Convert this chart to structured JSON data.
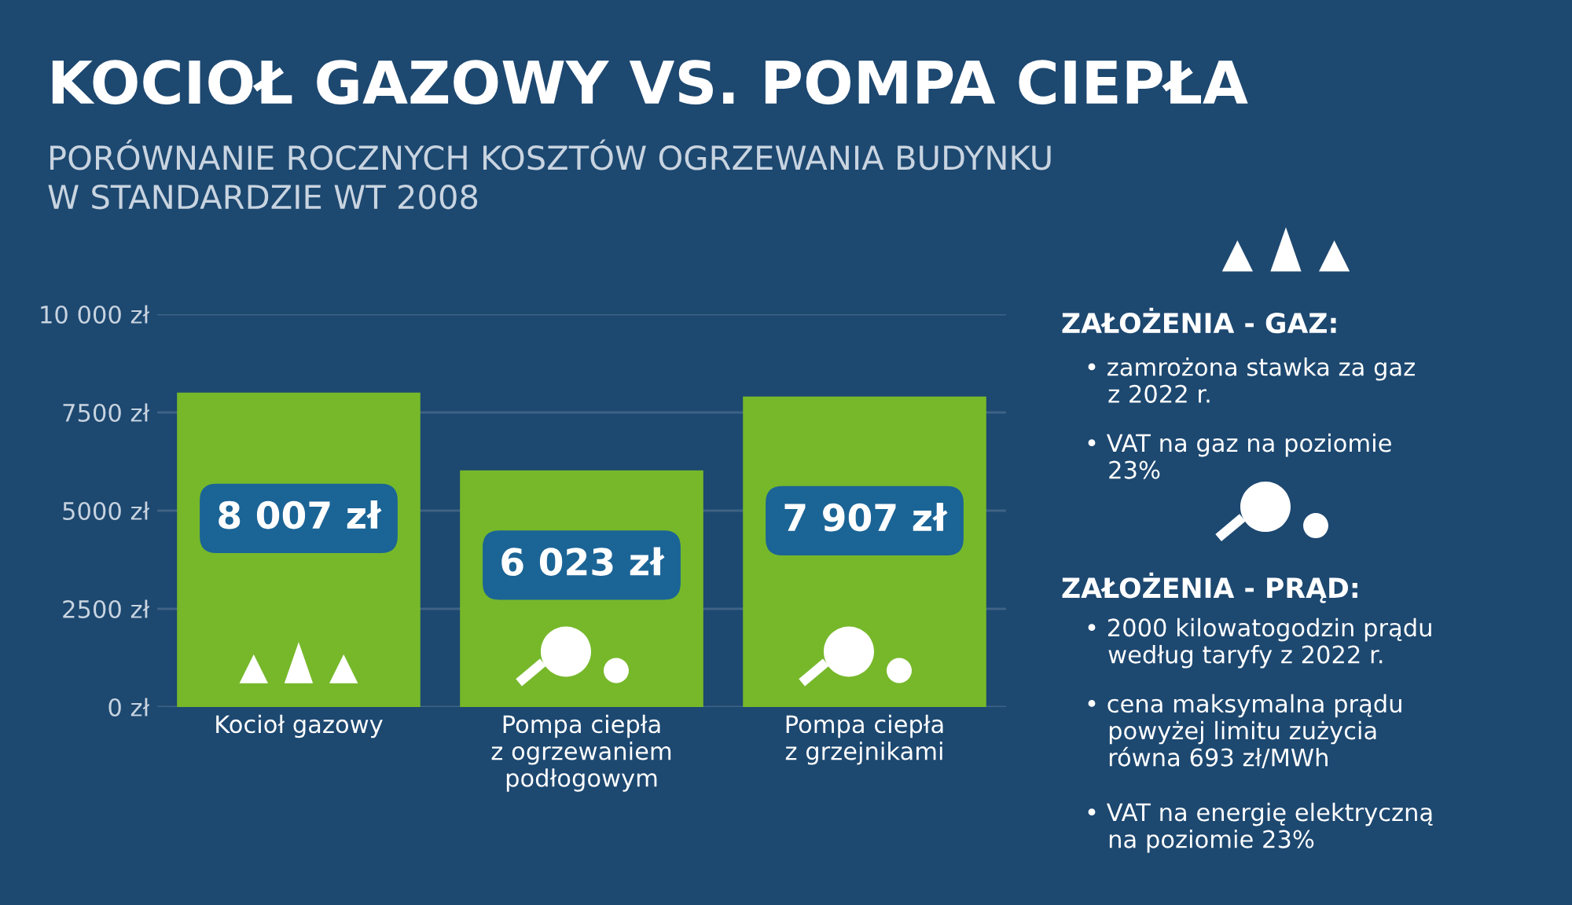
{
  "chart_data": {
    "type": "bar",
    "title": "KOCIOŁ GAZOWY VS. POMPA CIEPŁA",
    "subtitle": "PORÓWNANIE ROCZNYCH KOSZTÓW OGRZEWANIA BUDYNKU\nW STANDARDZIE WT 2008",
    "categories": [
      "Kocioł gazowy",
      "Pompa ciepła\nz ogrzewaniem\npodłogowym",
      "Pompa ciepła\nz grzejnikami"
    ],
    "values": [
      8007,
      6023,
      7907
    ],
    "color": "#76b82a",
    "value_labels": [
      "8 007 zł",
      "6 023 zł",
      "7 907 zł"
    ],
    "ylim": [
      0,
      10000
    ],
    "yticks": [
      {
        "value": 0,
        "label": "0 zł"
      },
      {
        "value": 2500,
        "label": "2500 zł"
      },
      {
        "value": 5000,
        "label": "5000 zł"
      },
      {
        "value": 7500,
        "label": "7500 zł"
      },
      {
        "value": 10000,
        "label": "10 000 zł"
      }
    ],
    "grid": "y",
    "legend": false,
    "annotations": [
      "ZAŁOŻENIA - GAZ:",
      "• zamrożona stawka za gaz\n   z 2022 r.",
      "• VAT na gaz na poziomie\n   23%",
      "ZAŁOŻENIA - PRĄD:",
      "• 2000 kilowatogodzin prądu\n   według taryfy z 2022 r.",
      "• cena maksymalna prądu\n   powyżej limitu zużycia\n   równa 693 zł/MWh",
      "• VAT na energię elektryczną\n   na poziomie 23%"
    ]
  }
}
